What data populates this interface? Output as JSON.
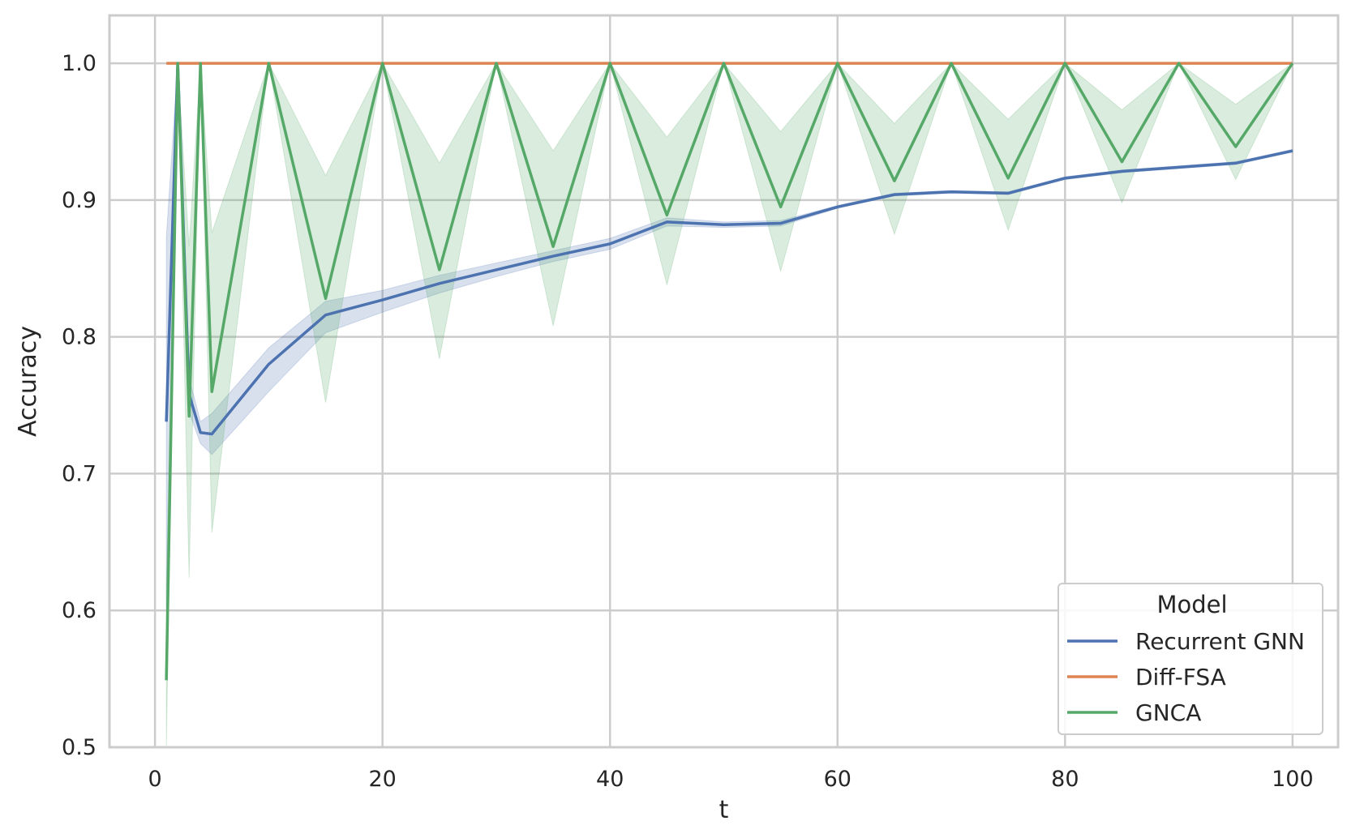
{
  "chart_data": {
    "type": "line",
    "xlabel": "t",
    "ylabel": "Accuracy",
    "xlim": [
      -4,
      104
    ],
    "ylim": [
      0.5,
      1.035
    ],
    "xticks": [
      0,
      20,
      40,
      60,
      80,
      100
    ],
    "xtick_labels": [
      "0",
      "20",
      "40",
      "60",
      "80",
      "100"
    ],
    "yticks": [
      0.5,
      0.6,
      0.7,
      0.8,
      0.9,
      1.0
    ],
    "ytick_labels": [
      "0.5",
      "0.6",
      "0.7",
      "0.8",
      "0.9",
      "1.0"
    ],
    "grid": true,
    "legend": {
      "title": "Model",
      "position": "lower-right"
    },
    "series": [
      {
        "name": "Recurrent GNN",
        "color": "#4c72b0",
        "x": [
          1,
          2,
          3,
          4,
          5,
          10,
          15,
          20,
          25,
          30,
          35,
          40,
          45,
          50,
          55,
          60,
          65,
          70,
          75,
          80,
          85,
          90,
          95,
          100
        ],
        "y": [
          0.738,
          1.0,
          0.758,
          0.73,
          0.729,
          0.78,
          0.816,
          0.827,
          0.839,
          0.849,
          0.859,
          0.868,
          0.884,
          0.882,
          0.883,
          0.895,
          0.904,
          0.906,
          0.905,
          0.916,
          0.921,
          0.924,
          0.927,
          0.936
        ],
        "lower": [
          0.6,
          1.0,
          0.745,
          0.722,
          0.714,
          0.76,
          0.803,
          0.818,
          0.832,
          0.844,
          0.855,
          0.864,
          0.881,
          0.88,
          0.881,
          0.894,
          0.903,
          0.905,
          0.904,
          0.915,
          0.92,
          0.923,
          0.926,
          0.935
        ],
        "upper": [
          0.873,
          1.0,
          0.77,
          0.738,
          0.744,
          0.792,
          0.826,
          0.834,
          0.845,
          0.854,
          0.863,
          0.872,
          0.887,
          0.884,
          0.885,
          0.896,
          0.905,
          0.907,
          0.906,
          0.917,
          0.922,
          0.925,
          0.928,
          0.937
        ]
      },
      {
        "name": "Diff-FSA",
        "color": "#dd8452",
        "x": [
          1,
          100
        ],
        "y": [
          1.0,
          1.0
        ]
      },
      {
        "name": "GNCA",
        "color": "#55a868",
        "x": [
          1,
          2,
          3,
          4,
          5,
          10,
          15,
          20,
          25,
          30,
          35,
          40,
          45,
          50,
          55,
          60,
          65,
          70,
          75,
          80,
          85,
          90,
          95,
          100
        ],
        "y": [
          0.549,
          1.0,
          0.742,
          1.0,
          0.76,
          1.0,
          0.828,
          1.0,
          0.849,
          1.0,
          0.866,
          1.0,
          0.889,
          1.0,
          0.895,
          1.0,
          0.914,
          1.0,
          0.916,
          1.0,
          0.928,
          1.0,
          0.939,
          1.0
        ],
        "lower": [
          0.5,
          1.0,
          0.624,
          1.0,
          0.657,
          1.0,
          0.752,
          1.0,
          0.784,
          1.0,
          0.808,
          1.0,
          0.838,
          1.0,
          0.848,
          1.0,
          0.875,
          1.0,
          0.878,
          1.0,
          0.898,
          1.0,
          0.915,
          1.0
        ],
        "upper": [
          0.62,
          1.0,
          0.866,
          1.0,
          0.876,
          1.0,
          0.918,
          1.0,
          0.927,
          1.0,
          0.936,
          1.0,
          0.946,
          1.0,
          0.95,
          1.0,
          0.956,
          1.0,
          0.959,
          1.0,
          0.966,
          1.0,
          0.97,
          1.0
        ]
      }
    ]
  }
}
